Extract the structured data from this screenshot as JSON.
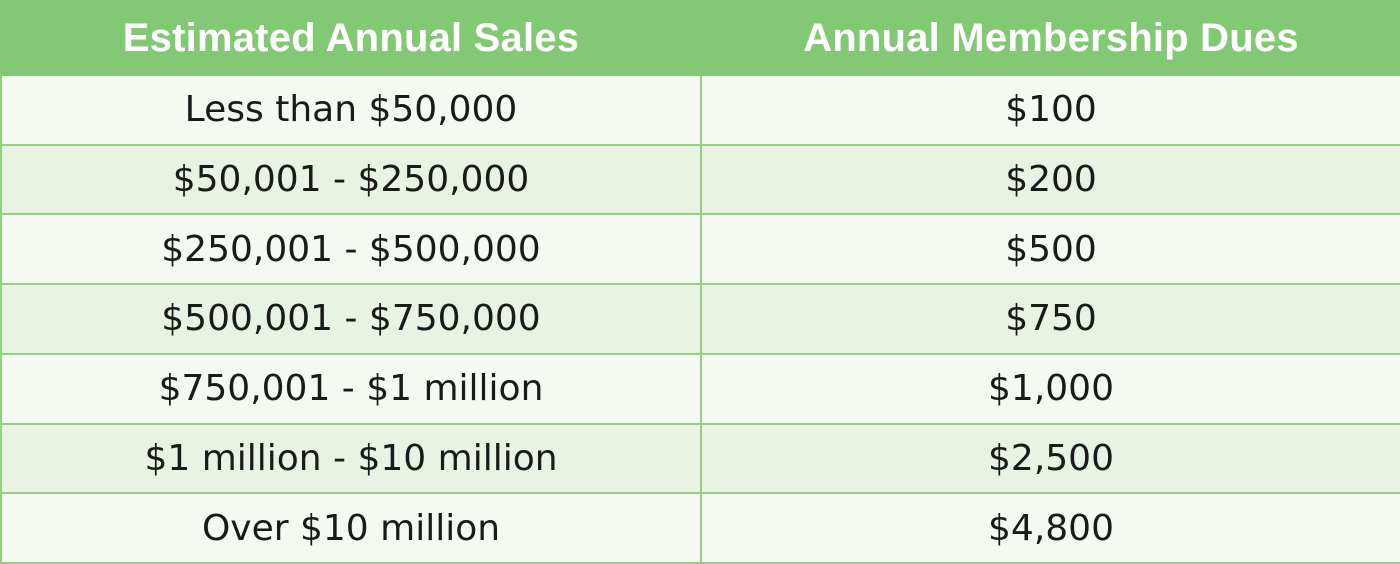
{
  "table": {
    "headers": {
      "sales": "Estimated Annual Sales",
      "dues": "Annual Membership Dues"
    },
    "rows": [
      {
        "sales": "Less than $50,000",
        "dues": "$100"
      },
      {
        "sales": "$50,001 - $250,000",
        "dues": "$200"
      },
      {
        "sales": "$250,001 - $500,000",
        "dues": "$500"
      },
      {
        "sales": "$500,001 - $750,000",
        "dues": "$750"
      },
      {
        "sales": "$750,001 - $1 million",
        "dues": "$1,000"
      },
      {
        "sales": "$1 million - $10 million",
        "dues": "$2,500"
      },
      {
        "sales": "Over $10 million",
        "dues": "$4,800"
      }
    ]
  },
  "colors": {
    "header_bg": "#83c874",
    "header_text": "#ffffff",
    "row_light": "#f4f9f2",
    "row_tint": "#e8f3e4",
    "grid": "#94cf84"
  }
}
